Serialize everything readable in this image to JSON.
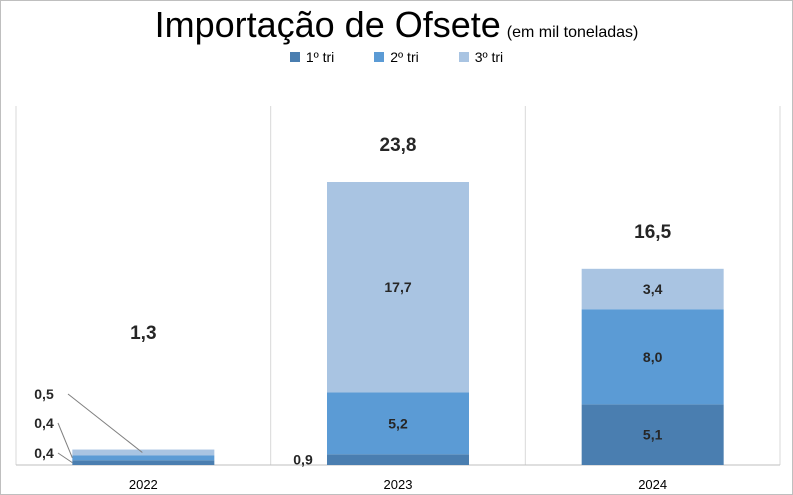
{
  "chart_data": {
    "type": "bar",
    "stacked": true,
    "title": "Importação de Ofsete",
    "subtitle": "(em mil toneladas)",
    "categories": [
      "2022",
      "2023",
      "2024"
    ],
    "series": [
      {
        "name": "1º tri",
        "values": [
          0.4,
          0.9,
          5.1
        ],
        "labels": [
          "0,4",
          "0,9",
          "5,1"
        ],
        "color": "#4a7eb0"
      },
      {
        "name": "2º tri",
        "values": [
          0.4,
          5.2,
          8.0
        ],
        "labels": [
          "0,4",
          "5,2",
          "8,0"
        ],
        "color": "#5b9bd5"
      },
      {
        "name": "3º tri",
        "values": [
          0.5,
          17.7,
          3.4
        ],
        "labels": [
          "0,5",
          "17,7",
          "3,4"
        ],
        "color": "#a9c4e2"
      }
    ],
    "totals": [
      1.3,
      23.8,
      16.5
    ],
    "total_labels": [
      "1,3",
      "23,8",
      "16,5"
    ],
    "legend": "top",
    "grid": false,
    "ylim": [
      0,
      26
    ]
  }
}
